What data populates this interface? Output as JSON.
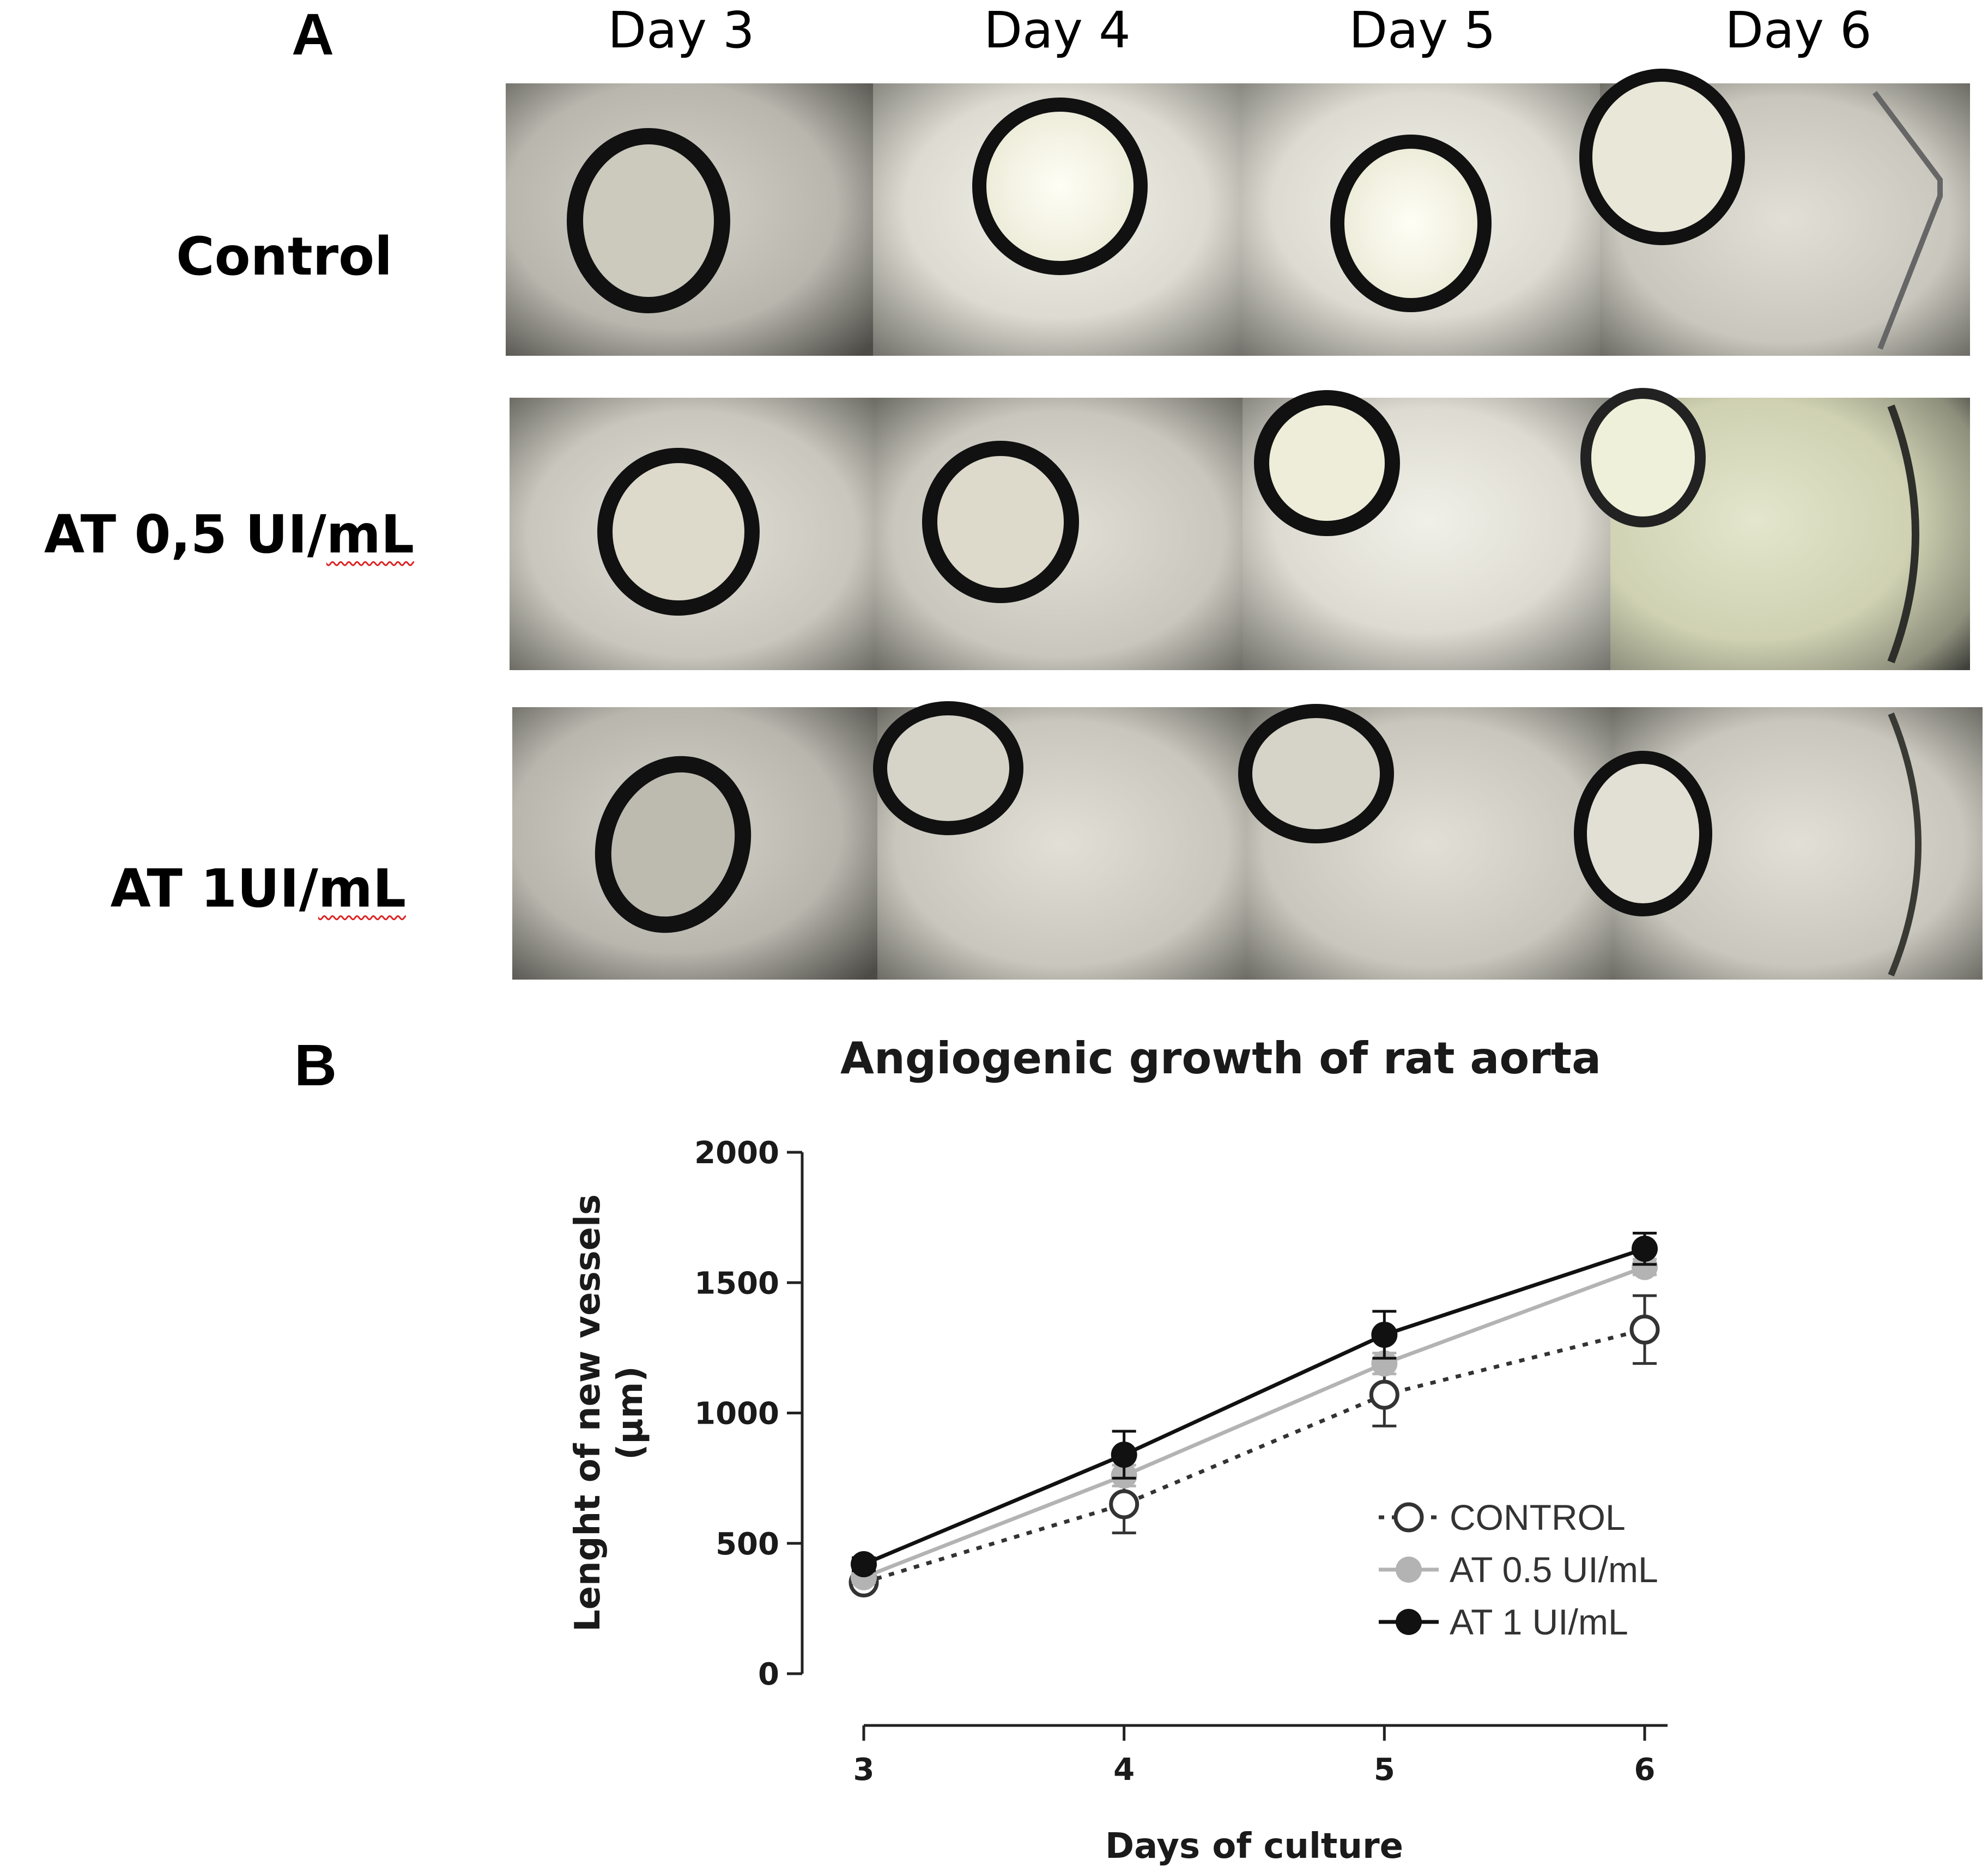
{
  "panel_a": {
    "letter": "A",
    "columns": [
      "Day 3",
      "Day 4",
      "Day 5",
      "Day 6"
    ],
    "rows": [
      {
        "label": "Control",
        "squiggle": ""
      },
      {
        "label": "AT 0,5 UI/",
        "squiggle": "mL"
      },
      {
        "label": "AT 1UI/",
        "squiggle": "mL"
      }
    ]
  },
  "panel_b": {
    "letter": "B"
  },
  "chart_data": {
    "type": "line",
    "title": "Angiogenic growth of rat aorta",
    "xlabel": "Days of culture",
    "ylabel": [
      "Lenght of new vessels",
      "(µm)"
    ],
    "x": [
      3,
      4,
      5,
      6
    ],
    "xlim": [
      3,
      6
    ],
    "ylim": [
      0,
      2000
    ],
    "yticks": [
      0,
      500,
      1000,
      1500,
      2000
    ],
    "grid": false,
    "legend_position": "lower-right",
    "series": [
      {
        "name": "CONTROL",
        "values": [
          350,
          650,
          1070,
          1320
        ],
        "errors": [
          25,
          110,
          120,
          130
        ],
        "color": "#333333",
        "line": "dotted",
        "marker": "open-circle"
      },
      {
        "name": "AT 0.5 UI/mL",
        "values": [
          370,
          760,
          1190,
          1560
        ],
        "errors": [
          20,
          40,
          40,
          30
        ],
        "color": "#b3b3b3",
        "line": "solid",
        "marker": "filled-circle"
      },
      {
        "name": "AT 1 UI/mL",
        "values": [
          420,
          840,
          1300,
          1630
        ],
        "errors": [
          25,
          90,
          90,
          60
        ],
        "color": "#111111",
        "line": "solid",
        "marker": "filled-circle"
      }
    ]
  }
}
